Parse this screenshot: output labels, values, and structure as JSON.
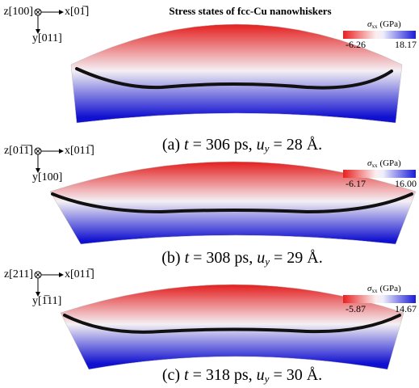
{
  "title": "Stress states of fcc-Cu nanowhiskers",
  "panels": [
    {
      "axes": {
        "z": "z[100]",
        "x": "x[01̅]",
        "y": "y[011]"
      },
      "colorbar": {
        "symbol": "σ",
        "subscript": "xx",
        "unit": "(GPa)",
        "min": "-6.26",
        "max": "18.17"
      },
      "caption": {
        "label": "(a)",
        "t": "t",
        "time": "= 306 ps,",
        "u": "u",
        "u_sub": "y",
        "disp": "= 28 Å."
      }
    },
    {
      "axes": {
        "z": "z[01̅1̅]",
        "x": "x[011̅]",
        "y": "y[100]"
      },
      "colorbar": {
        "symbol": "σ",
        "subscript": "xx",
        "unit": "(GPa)",
        "min": "-6.17",
        "max": "16.00"
      },
      "caption": {
        "label": "(b)",
        "t": "t",
        "time": "= 308 ps,",
        "u": "u",
        "u_sub": "y",
        "disp": "= 29 Å."
      }
    },
    {
      "axes": {
        "z": "z[211]",
        "x": "x[011̅]",
        "y": "y[1̅11]"
      },
      "colorbar": {
        "symbol": "σ",
        "subscript": "xx",
        "unit": "(GPa)",
        "min": "-5.87",
        "max": "14.67"
      },
      "caption": {
        "label": "(c)",
        "t": "t",
        "time": "= 318 ps,",
        "u": "u",
        "u_sub": "y",
        "disp": "= 30 Å."
      }
    }
  ]
}
